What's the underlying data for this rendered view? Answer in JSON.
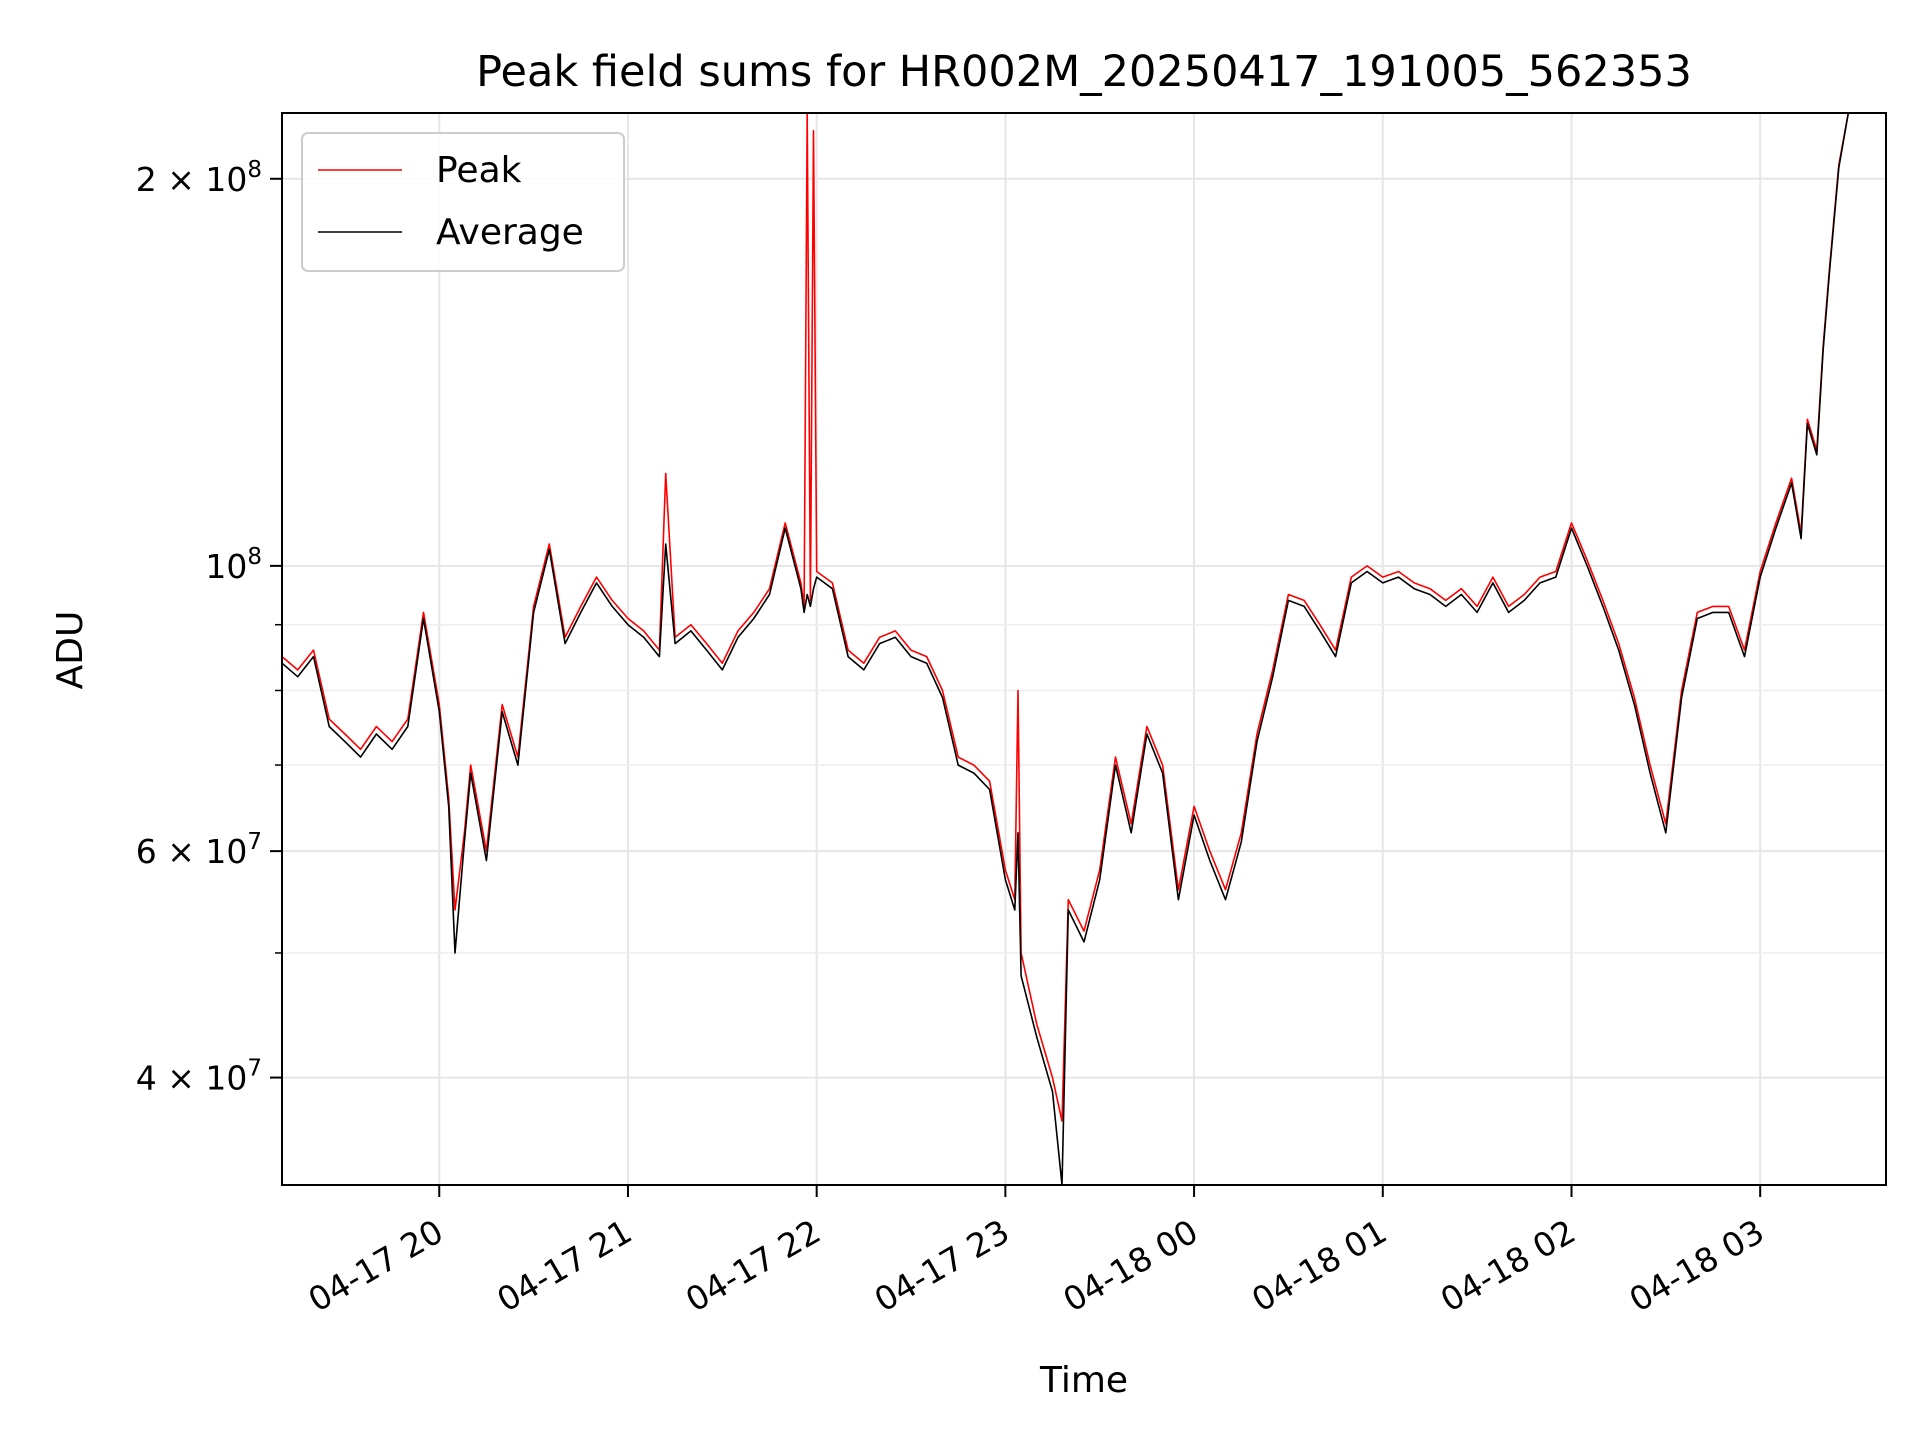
{
  "chart_data": {
    "type": "line",
    "title": "Peak field sums for HR002M_20250417_191005_562353",
    "xlabel": "Time",
    "ylabel": "ADU",
    "y_scale": "log",
    "ylim": [
      33000000,
      225000000
    ],
    "xlim": [
      "2025-04-17 19:10",
      "2025-04-18 03:40"
    ],
    "grid": true,
    "legend_position": "upper-left",
    "x_ticks": [
      {
        "t": "2025-04-17 20:00",
        "label": "04-17 20"
      },
      {
        "t": "2025-04-17 21:00",
        "label": "04-17 21"
      },
      {
        "t": "2025-04-17 22:00",
        "label": "04-17 22"
      },
      {
        "t": "2025-04-17 23:00",
        "label": "04-17 23"
      },
      {
        "t": "2025-04-18 00:00",
        "label": "04-18 00"
      },
      {
        "t": "2025-04-18 01:00",
        "label": "04-18 01"
      },
      {
        "t": "2025-04-18 02:00",
        "label": "04-18 02"
      },
      {
        "t": "2025-04-18 03:00",
        "label": "04-18 03"
      }
    ],
    "y_ticks": [
      {
        "value": 40000000,
        "base": "4 × 10",
        "exp": "7"
      },
      {
        "value": 60000000,
        "base": "6 × 10",
        "exp": "7"
      },
      {
        "value": 100000000,
        "base": "10",
        "exp": "8"
      },
      {
        "value": 200000000,
        "base": "2 × 10",
        "exp": "8"
      }
    ],
    "y_minor_ticks": [
      50000000,
      70000000,
      80000000,
      90000000
    ],
    "series": [
      {
        "name": "Peak",
        "color": "#ff0000",
        "x": [
          "2025-04-17 19:10",
          "2025-04-17 19:15",
          "2025-04-17 19:20",
          "2025-04-17 19:25",
          "2025-04-17 19:30",
          "2025-04-17 19:35",
          "2025-04-17 19:40",
          "2025-04-17 19:45",
          "2025-04-17 19:50",
          "2025-04-17 19:55",
          "2025-04-17 20:00",
          "2025-04-17 20:03",
          "2025-04-17 20:05",
          "2025-04-17 20:08",
          "2025-04-17 20:10",
          "2025-04-17 20:15",
          "2025-04-17 20:20",
          "2025-04-17 20:25",
          "2025-04-17 20:30",
          "2025-04-17 20:35",
          "2025-04-17 20:40",
          "2025-04-17 20:45",
          "2025-04-17 20:50",
          "2025-04-17 20:55",
          "2025-04-17 21:00",
          "2025-04-17 21:05",
          "2025-04-17 21:10",
          "2025-04-17 21:12",
          "2025-04-17 21:15",
          "2025-04-17 21:20",
          "2025-04-17 21:25",
          "2025-04-17 21:30",
          "2025-04-17 21:35",
          "2025-04-17 21:40",
          "2025-04-17 21:45",
          "2025-04-17 21:50",
          "2025-04-17 21:55",
          "2025-04-17 21:56",
          "2025-04-17 21:57",
          "2025-04-17 21:58",
          "2025-04-17 21:59",
          "2025-04-17 22:00",
          "2025-04-17 22:05",
          "2025-04-17 22:10",
          "2025-04-17 22:15",
          "2025-04-17 22:20",
          "2025-04-17 22:25",
          "2025-04-17 22:30",
          "2025-04-17 22:35",
          "2025-04-17 22:40",
          "2025-04-17 22:45",
          "2025-04-17 22:50",
          "2025-04-17 22:55",
          "2025-04-17 23:00",
          "2025-04-17 23:03",
          "2025-04-17 23:04",
          "2025-04-17 23:05",
          "2025-04-17 23:10",
          "2025-04-17 23:15",
          "2025-04-17 23:18",
          "2025-04-17 23:20",
          "2025-04-17 23:25",
          "2025-04-17 23:30",
          "2025-04-17 23:35",
          "2025-04-17 23:40",
          "2025-04-17 23:45",
          "2025-04-17 23:50",
          "2025-04-17 23:55",
          "2025-04-18 00:00",
          "2025-04-18 00:05",
          "2025-04-18 00:10",
          "2025-04-18 00:15",
          "2025-04-18 00:20",
          "2025-04-18 00:25",
          "2025-04-18 00:30",
          "2025-04-18 00:35",
          "2025-04-18 00:40",
          "2025-04-18 00:45",
          "2025-04-18 00:50",
          "2025-04-18 00:55",
          "2025-04-18 01:00",
          "2025-04-18 01:05",
          "2025-04-18 01:10",
          "2025-04-18 01:15",
          "2025-04-18 01:20",
          "2025-04-18 01:25",
          "2025-04-18 01:30",
          "2025-04-18 01:35",
          "2025-04-18 01:40",
          "2025-04-18 01:45",
          "2025-04-18 01:50",
          "2025-04-18 01:55",
          "2025-04-18 02:00",
          "2025-04-18 02:05",
          "2025-04-18 02:10",
          "2025-04-18 02:15",
          "2025-04-18 02:20",
          "2025-04-18 02:25",
          "2025-04-18 02:30",
          "2025-04-18 02:35",
          "2025-04-18 02:40",
          "2025-04-18 02:45",
          "2025-04-18 02:50",
          "2025-04-18 02:55",
          "2025-04-18 03:00",
          "2025-04-18 03:05",
          "2025-04-18 03:10",
          "2025-04-18 03:13",
          "2025-04-18 03:15",
          "2025-04-18 03:18",
          "2025-04-18 03:20",
          "2025-04-18 03:22",
          "2025-04-18 03:25",
          "2025-04-18 03:28"
        ],
        "values": [
          85000000,
          83000000,
          86000000,
          76000000,
          74000000,
          72000000,
          75000000,
          73000000,
          76000000,
          92000000,
          78000000,
          66000000,
          54000000,
          62000000,
          70000000,
          60000000,
          78000000,
          71000000,
          93000000,
          104000000,
          88000000,
          93000000,
          98000000,
          94000000,
          91000000,
          89000000,
          86000000,
          118000000,
          88000000,
          90000000,
          87000000,
          84000000,
          89000000,
          92000000,
          96000000,
          108000000,
          97000000,
          93000000,
          232000000,
          94000000,
          218000000,
          99000000,
          97000000,
          86000000,
          84000000,
          88000000,
          89000000,
          86000000,
          85000000,
          80000000,
          71000000,
          70000000,
          68000000,
          58000000,
          55000000,
          80000000,
          50000000,
          44000000,
          40000000,
          37000000,
          55000000,
          52000000,
          58000000,
          71000000,
          63000000,
          75000000,
          70000000,
          56000000,
          65000000,
          60000000,
          56000000,
          62000000,
          74000000,
          83000000,
          95000000,
          94000000,
          90000000,
          86000000,
          98000000,
          100000000,
          98000000,
          99000000,
          97000000,
          96000000,
          94000000,
          96000000,
          93000000,
          98000000,
          93000000,
          95000000,
          98000000,
          99000000,
          108000000,
          101000000,
          94000000,
          87000000,
          79000000,
          70000000,
          63000000,
          80000000,
          92000000,
          93000000,
          93000000,
          86000000,
          99000000,
          108000000,
          117000000,
          106000000,
          130000000,
          123000000,
          148000000,
          170000000,
          205000000,
          225000000
        ]
      },
      {
        "name": "Average",
        "color": "#000000",
        "x": [
          "2025-04-17 19:10",
          "2025-04-17 19:15",
          "2025-04-17 19:20",
          "2025-04-17 19:25",
          "2025-04-17 19:30",
          "2025-04-17 19:35",
          "2025-04-17 19:40",
          "2025-04-17 19:45",
          "2025-04-17 19:50",
          "2025-04-17 19:55",
          "2025-04-17 20:00",
          "2025-04-17 20:03",
          "2025-04-17 20:05",
          "2025-04-17 20:08",
          "2025-04-17 20:10",
          "2025-04-17 20:15",
          "2025-04-17 20:20",
          "2025-04-17 20:25",
          "2025-04-17 20:30",
          "2025-04-17 20:35",
          "2025-04-17 20:40",
          "2025-04-17 20:45",
          "2025-04-17 20:50",
          "2025-04-17 20:55",
          "2025-04-17 21:00",
          "2025-04-17 21:05",
          "2025-04-17 21:10",
          "2025-04-17 21:12",
          "2025-04-17 21:15",
          "2025-04-17 21:20",
          "2025-04-17 21:25",
          "2025-04-17 21:30",
          "2025-04-17 21:35",
          "2025-04-17 21:40",
          "2025-04-17 21:45",
          "2025-04-17 21:50",
          "2025-04-17 21:55",
          "2025-04-17 21:56",
          "2025-04-17 21:57",
          "2025-04-17 21:58",
          "2025-04-17 21:59",
          "2025-04-17 22:00",
          "2025-04-17 22:05",
          "2025-04-17 22:10",
          "2025-04-17 22:15",
          "2025-04-17 22:20",
          "2025-04-17 22:25",
          "2025-04-17 22:30",
          "2025-04-17 22:35",
          "2025-04-17 22:40",
          "2025-04-17 22:45",
          "2025-04-17 22:50",
          "2025-04-17 22:55",
          "2025-04-17 23:00",
          "2025-04-17 23:03",
          "2025-04-17 23:04",
          "2025-04-17 23:05",
          "2025-04-17 23:10",
          "2025-04-17 23:15",
          "2025-04-17 23:18",
          "2025-04-17 23:20",
          "2025-04-17 23:25",
          "2025-04-17 23:30",
          "2025-04-17 23:35",
          "2025-04-17 23:40",
          "2025-04-17 23:45",
          "2025-04-17 23:50",
          "2025-04-17 23:55",
          "2025-04-18 00:00",
          "2025-04-18 00:05",
          "2025-04-18 00:10",
          "2025-04-18 00:15",
          "2025-04-18 00:20",
          "2025-04-18 00:25",
          "2025-04-18 00:30",
          "2025-04-18 00:35",
          "2025-04-18 00:40",
          "2025-04-18 00:45",
          "2025-04-18 00:50",
          "2025-04-18 00:55",
          "2025-04-18 01:00",
          "2025-04-18 01:05",
          "2025-04-18 01:10",
          "2025-04-18 01:15",
          "2025-04-18 01:20",
          "2025-04-18 01:25",
          "2025-04-18 01:30",
          "2025-04-18 01:35",
          "2025-04-18 01:40",
          "2025-04-18 01:45",
          "2025-04-18 01:50",
          "2025-04-18 01:55",
          "2025-04-18 02:00",
          "2025-04-18 02:05",
          "2025-04-18 02:10",
          "2025-04-18 02:15",
          "2025-04-18 02:20",
          "2025-04-18 02:25",
          "2025-04-18 02:30",
          "2025-04-18 02:35",
          "2025-04-18 02:40",
          "2025-04-18 02:45",
          "2025-04-18 02:50",
          "2025-04-18 02:55",
          "2025-04-18 03:00",
          "2025-04-18 03:05",
          "2025-04-18 03:10",
          "2025-04-18 03:13",
          "2025-04-18 03:15",
          "2025-04-18 03:18",
          "2025-04-18 03:20",
          "2025-04-18 03:22",
          "2025-04-18 03:25",
          "2025-04-18 03:28"
        ],
        "values": [
          84000000,
          82000000,
          85000000,
          75000000,
          73000000,
          71000000,
          74000000,
          72000000,
          75000000,
          91000000,
          77000000,
          65000000,
          50000000,
          61000000,
          69000000,
          59000000,
          77000000,
          70000000,
          92000000,
          103000000,
          87000000,
          92000000,
          97000000,
          93000000,
          90000000,
          88000000,
          85000000,
          104000000,
          87000000,
          89000000,
          86000000,
          83000000,
          88000000,
          91000000,
          95000000,
          107000000,
          96000000,
          92000000,
          95000000,
          93000000,
          96000000,
          98000000,
          96000000,
          85000000,
          83000000,
          87000000,
          88000000,
          85000000,
          84000000,
          79000000,
          70000000,
          69000000,
          67000000,
          57000000,
          54000000,
          62000000,
          48000000,
          43000000,
          39000000,
          33000000,
          54000000,
          51000000,
          57000000,
          70000000,
          62000000,
          74000000,
          69000000,
          55000000,
          64000000,
          59000000,
          55000000,
          61000000,
          73000000,
          82000000,
          94000000,
          93000000,
          89000000,
          85000000,
          97000000,
          99000000,
          97000000,
          98000000,
          96000000,
          95000000,
          93000000,
          95000000,
          92000000,
          97000000,
          92000000,
          94000000,
          97000000,
          98000000,
          107000000,
          100000000,
          93000000,
          86000000,
          78000000,
          69000000,
          62000000,
          79000000,
          91000000,
          92000000,
          92000000,
          85000000,
          98000000,
          107000000,
          116000000,
          105000000,
          129000000,
          122000000,
          147000000,
          169000000,
          204000000,
          225000000
        ]
      }
    ]
  }
}
